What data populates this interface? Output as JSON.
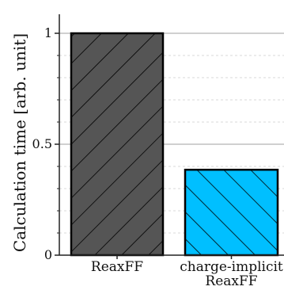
{
  "chart_data": {
    "type": "bar",
    "title": "",
    "xlabel": "",
    "ylabel": "Calculation time [arb. unit]",
    "ylim": [
      0,
      1.1
    ],
    "yticks": [
      {
        "value": 0,
        "label": "0"
      },
      {
        "value": 0.5,
        "label": "0.5"
      },
      {
        "value": 1,
        "label": "1"
      }
    ],
    "minor_gridlines": [
      0.1,
      0.2,
      0.3,
      0.4,
      0.6,
      0.7,
      0.8,
      0.9
    ],
    "major_gridlines": [
      0.5,
      1
    ],
    "grid": true,
    "categories": [
      {
        "lines": [
          "ReaxFF"
        ]
      },
      {
        "lines": [
          "charge-implicit",
          "ReaxFF"
        ]
      }
    ],
    "values": [
      1.0,
      0.385
    ],
    "bar_colors": [
      "#555555",
      "#00bfff"
    ],
    "hatch": "diagonal",
    "legend": "none"
  }
}
